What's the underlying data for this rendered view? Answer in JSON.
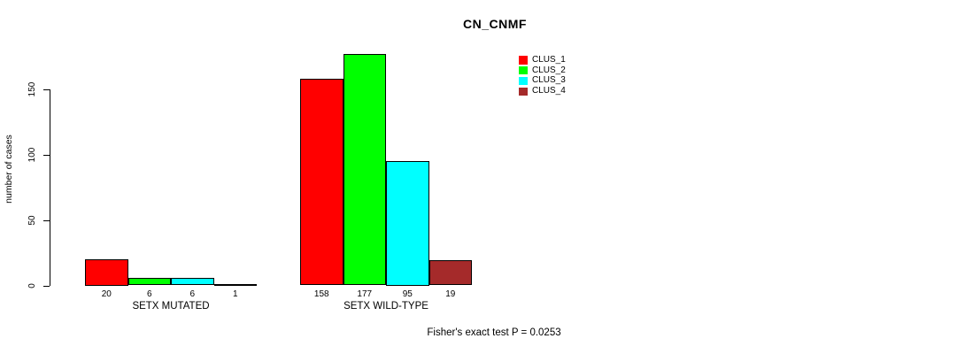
{
  "chart_data": {
    "type": "bar",
    "title": "CN_CNMF",
    "ylabel": "number of cases",
    "xlabel": "",
    "categories": [
      "SETX MUTATED",
      "SETX WILD-TYPE"
    ],
    "series": [
      {
        "name": "CLUS_1",
        "color": "#ff0000",
        "values": [
          20,
          158
        ]
      },
      {
        "name": "CLUS_2",
        "color": "#00ff00",
        "values": [
          6,
          177
        ]
      },
      {
        "name": "CLUS_3",
        "color": "#00ffff",
        "values": [
          6,
          95
        ]
      },
      {
        "name": "CLUS_4",
        "color": "#a52a2a",
        "values": [
          1,
          19
        ]
      }
    ],
    "bar_value_labels": [
      [
        "20",
        "6",
        "6",
        "1"
      ],
      [
        "158",
        "177",
        "95",
        "19"
      ]
    ],
    "yticks": [
      0,
      50,
      100,
      150
    ],
    "ylim": [
      0,
      185
    ],
    "grid": false,
    "legend_position": "top-right",
    "annotation": "Fisher's exact test P = 0.0253"
  },
  "colors": {
    "background": "#ffffff",
    "axis": "#000000",
    "text": "#000000",
    "bar_border": "#000000"
  }
}
